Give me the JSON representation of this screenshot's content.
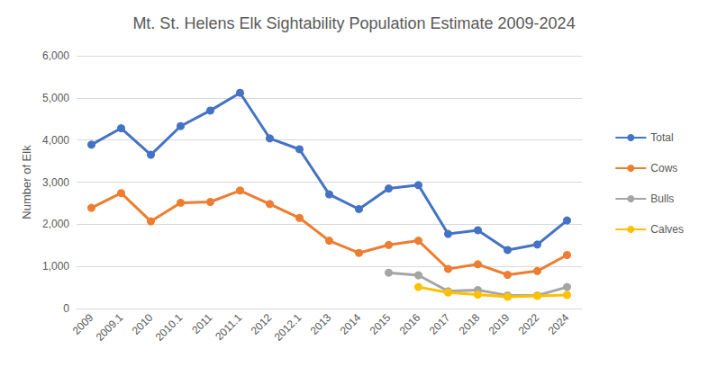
{
  "chart_data": {
    "type": "line",
    "title": "Mt. St. Helens Elk Sightability Population Estimate 2009-2024",
    "y_label": "Number of Elk",
    "categories": [
      "2009",
      "2009.1",
      "2010",
      "2010.1",
      "2011",
      "2011.1",
      "2012",
      "2012.1",
      "2013",
      "2014",
      "2015",
      "2016",
      "2017",
      "2018",
      "2019",
      "2022",
      "2024"
    ],
    "series": [
      {
        "name": "Total",
        "color": "#4472c4",
        "values": [
          3890,
          4280,
          3650,
          4330,
          4700,
          5120,
          4040,
          3780,
          2710,
          2360,
          2850,
          2930,
          1770,
          1860,
          1390,
          1520,
          2090
        ]
      },
      {
        "name": "Cows",
        "color": "#ed7d31",
        "values": [
          2390,
          2740,
          2070,
          2510,
          2530,
          2800,
          2480,
          2150,
          1610,
          1320,
          1510,
          1610,
          940,
          1050,
          800,
          890,
          1270
        ]
      },
      {
        "name": "Bulls",
        "color": "#a5a5a5",
        "values": [
          null,
          null,
          null,
          null,
          null,
          null,
          null,
          null,
          null,
          null,
          850,
          790,
          410,
          440,
          310,
          310,
          510
        ]
      },
      {
        "name": "Calves",
        "color": "#ffc000",
        "values": [
          null,
          null,
          null,
          null,
          null,
          null,
          null,
          null,
          null,
          null,
          null,
          510,
          380,
          330,
          280,
          300,
          320
        ]
      }
    ],
    "ylim": [
      0,
      6000
    ],
    "yticks": [
      0,
      1000,
      2000,
      3000,
      4000,
      5000,
      6000
    ],
    "grid": true,
    "legend": "right",
    "marker": "circle",
    "line_style": "solid"
  }
}
